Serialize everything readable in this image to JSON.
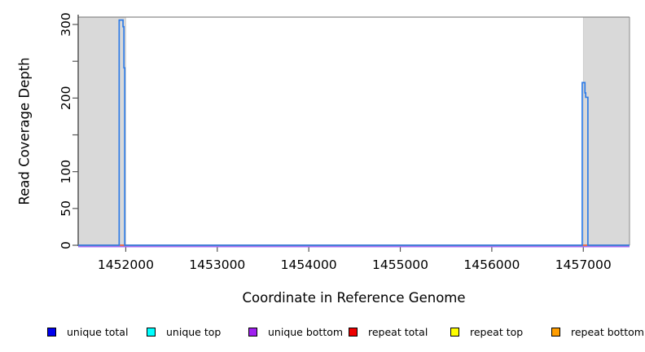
{
  "chart_data": {
    "type": "line",
    "title": "",
    "xlabel": "Coordinate in Reference Genome",
    "ylabel": "Read Coverage Depth",
    "xlim": [
      1451480,
      1457505
    ],
    "ylim": [
      0,
      310
    ],
    "grid": false,
    "x_ticks": [
      {
        "v": 1452000,
        "label": "1452000"
      },
      {
        "v": 1453000,
        "label": "1453000"
      },
      {
        "v": 1454000,
        "label": "1454000"
      },
      {
        "v": 1455000,
        "label": "1455000"
      },
      {
        "v": 1456000,
        "label": "1456000"
      },
      {
        "v": 1457000,
        "label": "1457000"
      }
    ],
    "y_ticks": [
      {
        "v": 0,
        "label": "0"
      },
      {
        "v": 50,
        "label": "50"
      },
      {
        "v": 100,
        "label": "100"
      },
      {
        "v": 150,
        "label": ""
      },
      {
        "v": 200,
        "label": "200"
      },
      {
        "v": 250,
        "label": ""
      },
      {
        "v": 300,
        "label": "300"
      }
    ],
    "shaded_flank_regions": {
      "color": "#d9d9d9",
      "border_color": "#c6c6c6",
      "regions": [
        [
          1451480,
          1452000
        ],
        [
          1457000,
          1457505
        ]
      ]
    },
    "box_color": "#8a8a8a",
    "axis_color": "#3c3c3c",
    "tick_color": "#555555",
    "series": [
      {
        "name": "unique total",
        "swatch": "#0000ee",
        "line": "#2f7ce6",
        "points": [
          [
            1451480,
            0
          ],
          [
            1451928,
            0
          ],
          [
            1451928,
            306
          ],
          [
            1451970,
            306
          ],
          [
            1451970,
            297
          ],
          [
            1451980,
            297
          ],
          [
            1451980,
            241
          ],
          [
            1451989,
            241
          ],
          [
            1451989,
            0
          ],
          [
            1456988,
            0
          ],
          [
            1456988,
            221
          ],
          [
            1457018,
            221
          ],
          [
            1457018,
            207
          ],
          [
            1457026,
            207
          ],
          [
            1457026,
            201
          ],
          [
            1457050,
            201
          ],
          [
            1457050,
            0
          ],
          [
            1457505,
            0
          ]
        ]
      },
      {
        "name": "unique top",
        "swatch": "#00ffff",
        "line": "#00e5ee",
        "points": [
          [
            1451480,
            0
          ],
          [
            1457505,
            0
          ]
        ]
      },
      {
        "name": "unique bottom",
        "swatch": "#a020f0",
        "line": "#a76ef0",
        "points": [
          [
            1451480,
            0
          ],
          [
            1457505,
            0
          ]
        ]
      },
      {
        "name": "repeat total",
        "swatch": "#ee0000",
        "line": "#e84b45",
        "points": [
          [
            1451480,
            0
          ],
          [
            1457505,
            0
          ]
        ]
      },
      {
        "name": "repeat top",
        "swatch": "#ffff00",
        "line": "#ffff00",
        "points": [
          [
            1451480,
            0
          ],
          [
            1457505,
            0
          ]
        ]
      },
      {
        "name": "repeat bottom",
        "swatch": "#ff9d00",
        "line": "#ff9d00",
        "points": [
          [
            1451480,
            0
          ],
          [
            1457505,
            0
          ]
        ]
      }
    ],
    "legend": {
      "position": "bottom",
      "items": [
        {
          "label": "unique total",
          "fill": "#0000ee"
        },
        {
          "label": "unique top",
          "fill": "#00ffff"
        },
        {
          "label": "unique bottom",
          "fill": "#a020f0"
        },
        {
          "label": "repeat total",
          "fill": "#ee0000"
        },
        {
          "label": "repeat top",
          "fill": "#ffff00"
        },
        {
          "label": "repeat bottom",
          "fill": "#ff9d00"
        }
      ]
    }
  }
}
